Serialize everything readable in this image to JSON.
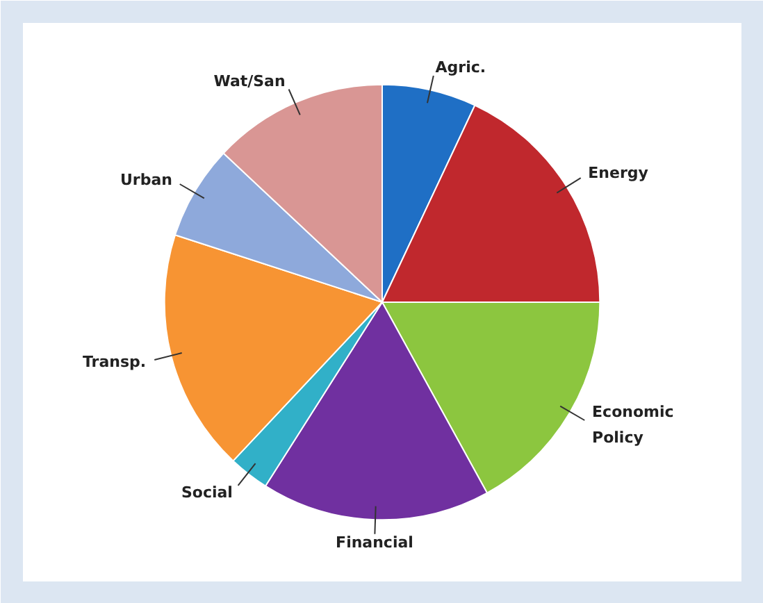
{
  "chart_data": {
    "type": "pie",
    "categories": [
      "Agric.",
      "Energy",
      "Economic Policy",
      "Financial",
      "Social",
      "Transp.",
      "Urban",
      "Wat/San"
    ],
    "values": [
      7,
      18,
      17,
      17,
      3,
      18,
      7,
      13
    ],
    "colors": [
      "#1f6fc5",
      "#c0282d",
      "#8cc63f",
      "#7030a0",
      "#31b0c8",
      "#f79433",
      "#8ea9db",
      "#d99694"
    ]
  }
}
